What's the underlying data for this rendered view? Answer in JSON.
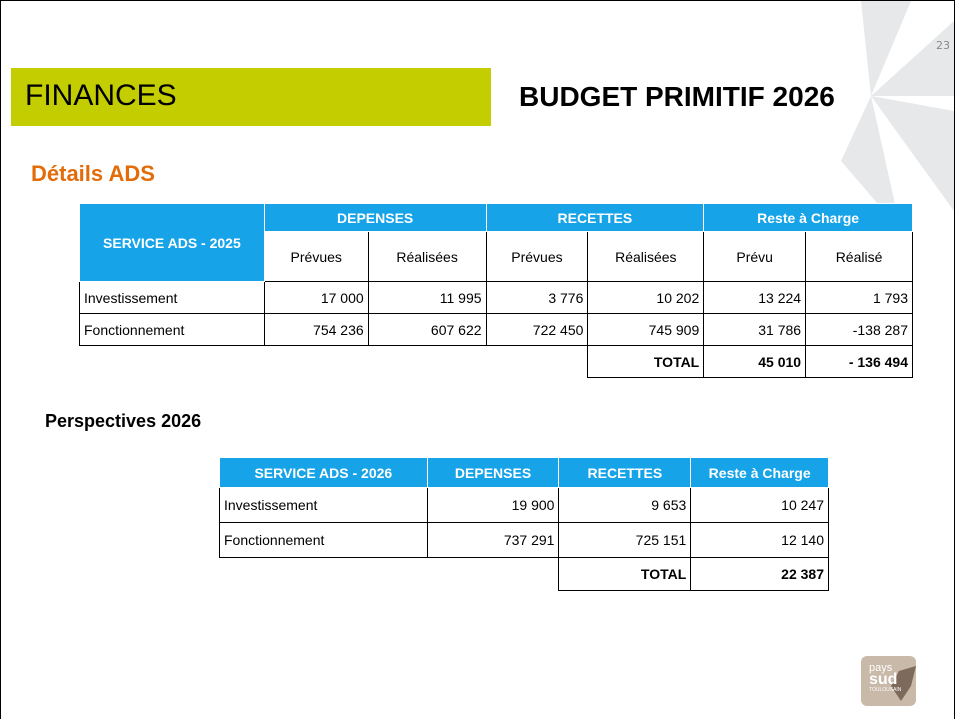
{
  "page_number": "23",
  "header": {
    "section": "FINANCES",
    "title": "BUDGET PRIMITIF 2026"
  },
  "section_title": "Détails ADS",
  "table1": {
    "corner": "SERVICE ADS - 2025",
    "groups": [
      "DEPENSES",
      "RECETTES",
      "Reste à Charge"
    ],
    "subheaders": [
      "Prévues",
      "Réalisées",
      "Prévues",
      "Réalisées",
      "Prévu",
      "Réalisé"
    ],
    "rows": [
      [
        "Investissement",
        "17 000",
        "11 995",
        "3 776",
        "10 202",
        "13 224",
        "1 793"
      ],
      [
        "Fonctionnement",
        "754 236",
        "607 622",
        "722 450",
        "745 909",
        "31 786",
        "-138 287"
      ]
    ],
    "total_label": "TOTAL",
    "totals": [
      "45 010",
      "- 136 494"
    ]
  },
  "subtitle": "Perspectives 2026",
  "table2": {
    "headers": [
      "SERVICE ADS - 2026",
      "DEPENSES",
      "RECETTES",
      "Reste à Charge"
    ],
    "rows": [
      [
        "Investissement",
        "19 900",
        "9 653",
        "10 247"
      ],
      [
        "Fonctionnement",
        "737 291",
        "725 151",
        "12 140"
      ]
    ],
    "total_label": "TOTAL",
    "totals": [
      "22 387"
    ]
  },
  "logo": {
    "line1": "pays",
    "line2": "sud",
    "line3": "TOULOUSAIN"
  }
}
